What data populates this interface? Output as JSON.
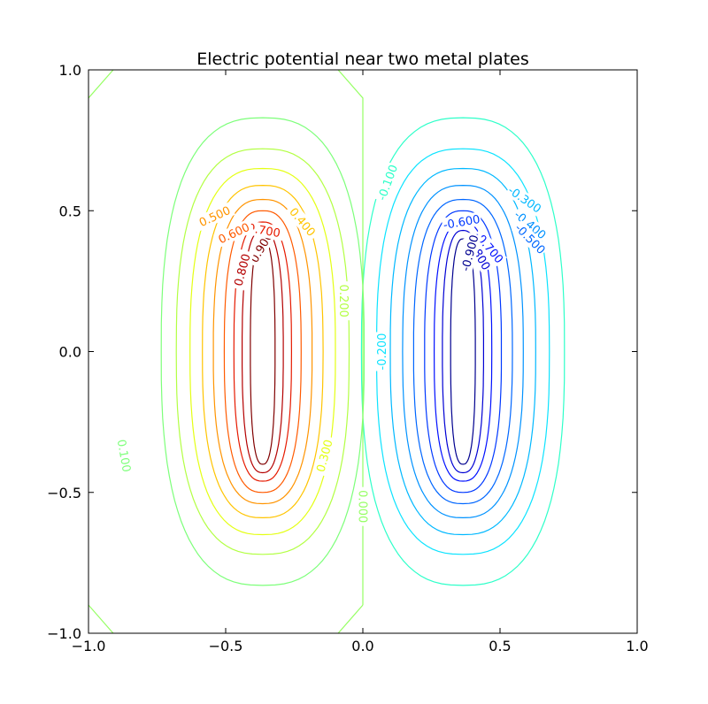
{
  "chart_data": {
    "type": "contour",
    "title": "Electric potential near two metal plates",
    "xlabel": "",
    "ylabel": "",
    "xlim": [
      -1.0,
      1.0
    ],
    "ylim": [
      -1.0,
      1.0
    ],
    "x_ticks": [
      "−1.0",
      "−0.5",
      "0.0",
      "0.5",
      "1.0"
    ],
    "y_ticks": [
      "−1.0",
      "−0.5",
      "0.0",
      "0.5",
      "1.0"
    ],
    "x_tick_values": [
      -1.0,
      -0.5,
      0.0,
      0.5,
      1.0
    ],
    "y_tick_values": [
      -1.0,
      -0.5,
      0.0,
      0.5,
      1.0
    ],
    "grid": false,
    "legend": "none",
    "positive_plate_center": [
      -0.365,
      0.0
    ],
    "negative_plate_center": [
      0.365,
      0.0
    ],
    "levels": [
      {
        "value": 0.9,
        "label": "0.900",
        "color": "#800000",
        "xhalf": 0.045,
        "yhalf": 0.4
      },
      {
        "value": 0.8,
        "label": "0.800",
        "color": "#b40000",
        "xhalf": 0.075,
        "yhalf": 0.43
      },
      {
        "value": 0.7,
        "label": "0.700",
        "color": "#e61a00",
        "xhalf": 0.105,
        "yhalf": 0.46
      },
      {
        "value": 0.6,
        "label": "0.600",
        "color": "#ff5a00",
        "xhalf": 0.14,
        "yhalf": 0.5
      },
      {
        "value": 0.5,
        "label": "0.500",
        "color": "#ff9400",
        "xhalf": 0.18,
        "yhalf": 0.54
      },
      {
        "value": 0.4,
        "label": "0.400",
        "color": "#ffc400",
        "xhalf": 0.22,
        "yhalf": 0.59
      },
      {
        "value": 0.3,
        "label": "0.300",
        "color": "#e4ff14",
        "xhalf": 0.265,
        "yhalf": 0.65
      },
      {
        "value": 0.2,
        "label": "0.200",
        "color": "#b3ff44",
        "xhalf": 0.315,
        "yhalf": 0.72
      },
      {
        "value": 0.1,
        "label": "0.100",
        "color": "#7dff7a",
        "xhalf": 0.37,
        "yhalf": 0.83
      },
      {
        "value": -0.1,
        "label": "-0.100",
        "color": "#2effc9",
        "xhalf": 0.37,
        "yhalf": 0.83
      },
      {
        "value": -0.2,
        "label": "-0.200",
        "color": "#0ce3ff",
        "xhalf": 0.315,
        "yhalf": 0.72
      },
      {
        "value": -0.3,
        "label": "-0.300",
        "color": "#00b8ff",
        "xhalf": 0.265,
        "yhalf": 0.65
      },
      {
        "value": -0.4,
        "label": "-0.400",
        "color": "#0092ff",
        "xhalf": 0.22,
        "yhalf": 0.59
      },
      {
        "value": -0.5,
        "label": "-0.500",
        "color": "#0066ff",
        "xhalf": 0.18,
        "yhalf": 0.54
      },
      {
        "value": -0.6,
        "label": "-0.600",
        "color": "#0038ff",
        "xhalf": 0.14,
        "yhalf": 0.5
      },
      {
        "value": -0.7,
        "label": "-0.700",
        "color": "#0010ff",
        "xhalf": 0.105,
        "yhalf": 0.46
      },
      {
        "value": -0.8,
        "label": "-0.800",
        "color": "#0000d4",
        "xhalf": 0.075,
        "yhalf": 0.43
      },
      {
        "value": -0.9,
        "label": "-0.900",
        "color": "#00008f",
        "xhalf": 0.045,
        "yhalf": 0.4
      }
    ],
    "zero_level": {
      "value": 0.0,
      "label": "0.000",
      "color": "#95ff63"
    },
    "contour_labels": [
      {
        "text": "0.900",
        "x": -0.37,
        "y": 0.37,
        "angle": -60,
        "color": "#800000"
      },
      {
        "text": "0.800",
        "x": -0.44,
        "y": 0.29,
        "angle": -75,
        "color": "#b40000"
      },
      {
        "text": "0.700",
        "x": -0.36,
        "y": 0.43,
        "angle": 10,
        "color": "#e61a00"
      },
      {
        "text": "0.600",
        "x": -0.47,
        "y": 0.42,
        "angle": -25,
        "color": "#ff5a00"
      },
      {
        "text": "0.500",
        "x": -0.54,
        "y": 0.48,
        "angle": -25,
        "color": "#ff9400"
      },
      {
        "text": "0.400",
        "x": -0.22,
        "y": 0.46,
        "angle": 50,
        "color": "#ffc400"
      },
      {
        "text": "0.300",
        "x": -0.14,
        "y": -0.37,
        "angle": -75,
        "color": "#e4ff14"
      },
      {
        "text": "0.200",
        "x": -0.07,
        "y": 0.18,
        "angle": 90,
        "color": "#b3ff44"
      },
      {
        "text": "0.100",
        "x": -0.87,
        "y": -0.37,
        "angle": 80,
        "color": "#7dff7a"
      },
      {
        "text": "0.000",
        "x": 0.0,
        "y": -0.55,
        "angle": 90,
        "color": "#95ff63"
      },
      {
        "text": "-0.100",
        "x": 0.09,
        "y": 0.6,
        "angle": -70,
        "color": "#2effc9"
      },
      {
        "text": "-0.200",
        "x": 0.07,
        "y": 0.0,
        "angle": -90,
        "color": "#0ce3ff"
      },
      {
        "text": "-0.300",
        "x": 0.59,
        "y": 0.54,
        "angle": 35,
        "color": "#00b8ff"
      },
      {
        "text": "-0.400",
        "x": 0.61,
        "y": 0.45,
        "angle": 40,
        "color": "#0092ff"
      },
      {
        "text": "-0.500",
        "x": 0.61,
        "y": 0.4,
        "angle": 45,
        "color": "#0066ff"
      },
      {
        "text": "-0.600",
        "x": 0.36,
        "y": 0.46,
        "angle": -10,
        "color": "#0038ff"
      },
      {
        "text": "-0.700",
        "x": 0.46,
        "y": 0.37,
        "angle": 50,
        "color": "#0010ff"
      },
      {
        "text": "-0.800",
        "x": 0.42,
        "y": 0.35,
        "angle": 60,
        "color": "#0000d4"
      },
      {
        "text": "-0.900",
        "x": 0.39,
        "y": 0.35,
        "angle": -75,
        "color": "#00008f"
      }
    ]
  }
}
